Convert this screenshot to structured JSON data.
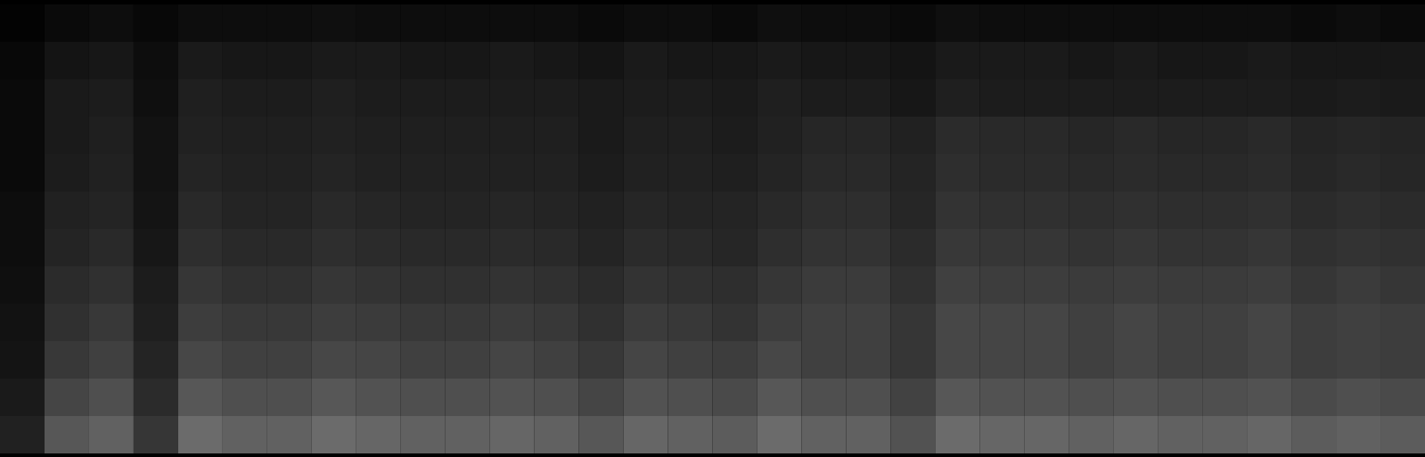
{
  "chart_data": {
    "type": "heatmap",
    "tick_labels": false,
    "grid": false,
    "zlim": [
      0,
      100
    ],
    "cells": [
      [
        1,
        4,
        5,
        3,
        5,
        5,
        5,
        6,
        5,
        5,
        5,
        5,
        5,
        4,
        5,
        5,
        4,
        6,
        5,
        5,
        4,
        6,
        5,
        5,
        5,
        5,
        5,
        5,
        5,
        4,
        5,
        4
      ],
      [
        3,
        8,
        9,
        5,
        10,
        9,
        9,
        10,
        10,
        9,
        9,
        10,
        9,
        8,
        10,
        9,
        9,
        10,
        9,
        9,
        8,
        10,
        10,
        10,
        9,
        10,
        9,
        9,
        10,
        9,
        9,
        9
      ],
      [
        4,
        10,
        11,
        6,
        12,
        11,
        11,
        12,
        11,
        11,
        11,
        11,
        11,
        10,
        11,
        11,
        10,
        12,
        11,
        11,
        9,
        12,
        11,
        11,
        11,
        11,
        11,
        11,
        11,
        10,
        11,
        10
      ],
      [
        4,
        10,
        12,
        7,
        13,
        12,
        12,
        13,
        12,
        12,
        12,
        12,
        12,
        10,
        12,
        12,
        11,
        13,
        15,
        15,
        13,
        17,
        16,
        16,
        15,
        16,
        15,
        15,
        16,
        14,
        15,
        14
      ],
      [
        4,
        11,
        13,
        7,
        14,
        13,
        13,
        14,
        13,
        13,
        13,
        13,
        13,
        11,
        13,
        13,
        12,
        14,
        16,
        16,
        14,
        18,
        17,
        17,
        16,
        17,
        16,
        16,
        17,
        15,
        16,
        15
      ],
      [
        5,
        13,
        14,
        8,
        16,
        14,
        14,
        16,
        15,
        14,
        14,
        15,
        14,
        13,
        15,
        14,
        14,
        16,
        18,
        18,
        15,
        20,
        19,
        19,
        18,
        19,
        18,
        18,
        19,
        17,
        18,
        17
      ],
      [
        5,
        14,
        16,
        9,
        18,
        16,
        16,
        18,
        17,
        16,
        16,
        17,
        16,
        14,
        17,
        16,
        15,
        18,
        20,
        20,
        17,
        22,
        21,
        21,
        20,
        21,
        20,
        20,
        21,
        19,
        20,
        19
      ],
      [
        6,
        17,
        19,
        11,
        21,
        19,
        19,
        21,
        20,
        19,
        19,
        20,
        19,
        17,
        20,
        19,
        18,
        21,
        23,
        23,
        19,
        25,
        24,
        24,
        23,
        24,
        23,
        23,
        24,
        21,
        23,
        21
      ],
      [
        7,
        19,
        22,
        12,
        24,
        22,
        22,
        24,
        23,
        22,
        22,
        23,
        22,
        19,
        23,
        22,
        20,
        24,
        25,
        25,
        21,
        28,
        27,
        27,
        25,
        27,
        25,
        25,
        27,
        24,
        25,
        24
      ],
      [
        8,
        22,
        25,
        14,
        28,
        25,
        25,
        28,
        27,
        25,
        25,
        27,
        25,
        22,
        27,
        25,
        24,
        28,
        25,
        25,
        21,
        28,
        27,
        27,
        25,
        27,
        25,
        25,
        27,
        24,
        25,
        24
      ],
      [
        10,
        27,
        31,
        17,
        34,
        31,
        31,
        34,
        32,
        31,
        31,
        32,
        31,
        27,
        32,
        31,
        29,
        34,
        31,
        31,
        26,
        34,
        32,
        32,
        31,
        32,
        31,
        31,
        32,
        29,
        31,
        29
      ],
      [
        13,
        34,
        38,
        21,
        42,
        38,
        38,
        42,
        40,
        38,
        38,
        40,
        38,
        34,
        40,
        38,
        36,
        42,
        38,
        38,
        32,
        42,
        40,
        40,
        38,
        40,
        38,
        38,
        40,
        36,
        38,
        36
      ]
    ]
  }
}
